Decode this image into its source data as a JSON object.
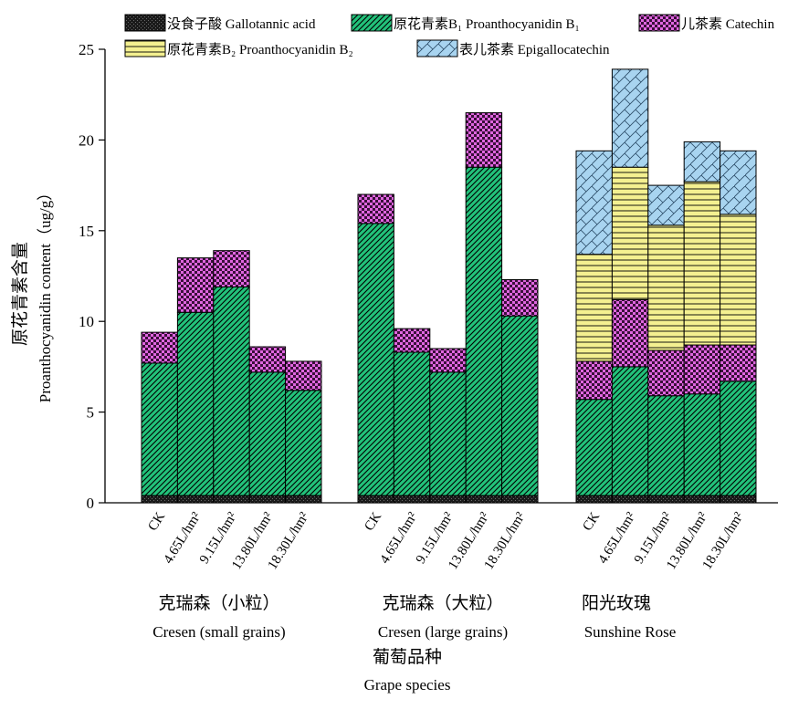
{
  "chart_data": {
    "type": "bar",
    "stacked": true,
    "ylabel_cn": "原花青素含量",
    "ylabel_en": "Proanthocyanidin content（ug/g）",
    "ylim": [
      0,
      25
    ],
    "yticks": [
      "0",
      "5",
      "10",
      "15",
      "20",
      "25"
    ],
    "xlabel_cn": "葡萄品种",
    "xlabel_en": "Grape species",
    "legend_position": "top",
    "series": [
      {
        "name": "没食子酸 Gallotannic acid",
        "color": "#1a1a1a"
      },
      {
        "name": "原花青素B₁ Proanthocyanidin B₁",
        "color": "#22c27a"
      },
      {
        "name": "儿茶素 Catechin",
        "color": "#e066e0"
      },
      {
        "name": "原花青素B₂ Proanthocyanidin B₂",
        "color": "#f4f090"
      },
      {
        "name": "表儿茶素 Epigallocatechin",
        "color": "#a8d4f0"
      }
    ],
    "groups": [
      {
        "name_cn": "克瑞森（小粒）",
        "name_en": "Cresen (small grains)",
        "categories": [
          "CK",
          "4.65L/hm²",
          "9.15L/hm²",
          "13.80L/hm²",
          "18.30L/hm²"
        ],
        "values": [
          [
            0.4,
            7.3,
            1.7,
            0,
            0
          ],
          [
            0.4,
            10.1,
            3.0,
            0,
            0
          ],
          [
            0.4,
            11.5,
            2.0,
            0,
            0
          ],
          [
            0.4,
            6.8,
            1.4,
            0,
            0
          ],
          [
            0.4,
            5.8,
            1.6,
            0,
            0
          ]
        ]
      },
      {
        "name_cn": "克瑞森（大粒）",
        "name_en": "Cresen (large grains)",
        "categories": [
          "CK",
          "4.65L/hm²",
          "9.15L/hm²",
          "13.80L/hm²",
          "18.30L/hm²"
        ],
        "values": [
          [
            0.4,
            15.0,
            1.6,
            0,
            0
          ],
          [
            0.4,
            7.9,
            1.3,
            0,
            0
          ],
          [
            0.4,
            6.8,
            1.3,
            0,
            0
          ],
          [
            0.4,
            18.1,
            3.0,
            0,
            0
          ],
          [
            0.4,
            9.9,
            2.0,
            0,
            0
          ]
        ]
      },
      {
        "name_cn": "阳光玫瑰",
        "name_en": "Sunshine Rose",
        "categories": [
          "CK",
          "4.65L/hm²",
          "9.15L/hm²",
          "13.80L/hm²",
          "18.30L/hm²"
        ],
        "values": [
          [
            0.4,
            5.3,
            2.1,
            5.9,
            5.7
          ],
          [
            0.4,
            7.1,
            3.7,
            7.3,
            5.4
          ],
          [
            0.4,
            5.5,
            2.5,
            6.9,
            2.2
          ],
          [
            0.4,
            5.6,
            2.7,
            9.0,
            2.2
          ],
          [
            0.4,
            6.3,
            2.0,
            7.2,
            3.5
          ]
        ]
      }
    ]
  }
}
